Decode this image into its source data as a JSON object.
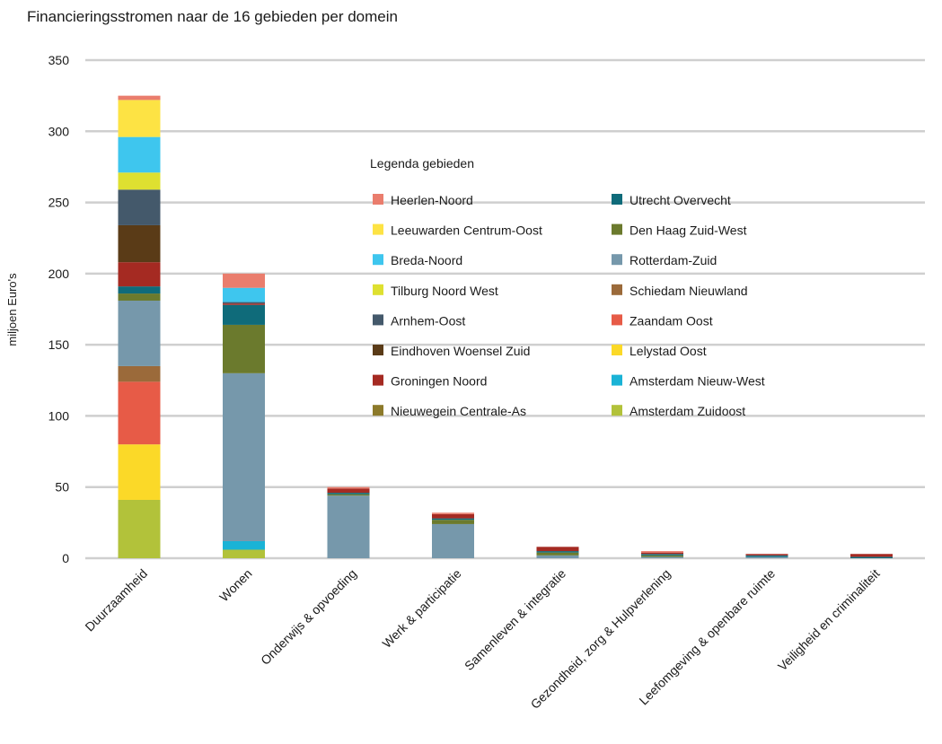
{
  "chart_data": {
    "type": "bar",
    "stacked": true,
    "title": "Financieringsstromen naar de 16 gebieden per domein",
    "xlabel": "",
    "ylabel": "miljoen Euro's",
    "ylim": [
      0,
      350
    ],
    "yticks": [
      0,
      50,
      100,
      150,
      200,
      250,
      300,
      350
    ],
    "grid": true,
    "legend_title": "Legenda gebieden",
    "legend_position": "center-right",
    "categories": [
      "Duurzaamheid",
      "Wonen",
      "Onderwijs & opvoeding",
      "Werk & participatie",
      "Samenleven & integratie",
      "Gezondheid, zorg & Hulpverlening",
      "Leefomgeving & openbare ruimte",
      "Veiligheid en criminaliteit"
    ],
    "series": [
      {
        "name": "Amsterdam Zuidoost",
        "color": "#b2c23a",
        "values": [
          41,
          6,
          0,
          0,
          0,
          0,
          0,
          0
        ]
      },
      {
        "name": "Amsterdam Nieuw-West",
        "color": "#1ab3d6",
        "values": [
          0,
          6,
          0,
          0,
          0,
          0,
          0,
          0
        ]
      },
      {
        "name": "Lelystad Oost",
        "color": "#fbd928",
        "values": [
          39,
          0,
          0,
          0,
          0,
          0,
          0,
          0
        ]
      },
      {
        "name": "Zaandam Oost",
        "color": "#e75b47",
        "values": [
          44,
          0,
          0,
          0,
          0,
          0,
          0,
          0
        ]
      },
      {
        "name": "Schiedam Nieuwland",
        "color": "#9b6a3a",
        "values": [
          11,
          0,
          0,
          0,
          0,
          0,
          0,
          0
        ]
      },
      {
        "name": "Rotterdam-Zuid",
        "color": "#7698ab",
        "values": [
          46,
          118,
          44,
          24,
          2,
          1,
          1,
          0
        ]
      },
      {
        "name": "Den Haag Zuid-West",
        "color": "#6b7a2d",
        "values": [
          5,
          34,
          1,
          3,
          2,
          1,
          0,
          0
        ]
      },
      {
        "name": "Utrecht Overvecht",
        "color": "#0f6b7a",
        "values": [
          5,
          14,
          1,
          1,
          1,
          1,
          1,
          1
        ]
      },
      {
        "name": "Nieuwegein Centrale-As",
        "color": "#8c7a2a",
        "values": [
          0,
          0,
          0,
          0,
          0,
          0,
          0,
          0
        ]
      },
      {
        "name": "Groningen Noord",
        "color": "#a52a22",
        "values": [
          17,
          1,
          3,
          3,
          3,
          1,
          1,
          2
        ]
      },
      {
        "name": "Eindhoven Woensel Zuid",
        "color": "#5a3b17",
        "values": [
          26,
          0,
          0,
          0,
          0,
          0,
          0,
          0
        ]
      },
      {
        "name": "Arnhem-Oost",
        "color": "#44596b",
        "values": [
          25,
          1,
          0,
          0,
          0,
          0,
          0,
          0
        ]
      },
      {
        "name": "Tilburg Noord West",
        "color": "#dee030",
        "values": [
          12,
          0,
          0,
          0,
          0,
          0,
          0,
          0
        ]
      },
      {
        "name": "Breda-Noord",
        "color": "#3ec6ee",
        "values": [
          25,
          10,
          0,
          0,
          0,
          0,
          0,
          0
        ]
      },
      {
        "name": "Leeuwarden Centrum-Oost",
        "color": "#fde344",
        "values": [
          26,
          0,
          0,
          0,
          0,
          0,
          0,
          0
        ]
      },
      {
        "name": "Heerlen-Noord",
        "color": "#ea7d6d",
        "values": [
          3,
          10,
          1,
          1,
          0,
          1,
          0,
          0
        ]
      }
    ],
    "legend_order": [
      "Heerlen-Noord",
      "Leeuwarden Centrum-Oost",
      "Breda-Noord",
      "Tilburg Noord West",
      "Arnhem-Oost",
      "Eindhoven Woensel Zuid",
      "Groningen Noord",
      "Nieuwegein Centrale-As",
      "Utrecht Overvecht",
      "Den Haag Zuid-West",
      "Rotterdam-Zuid",
      "Schiedam Nieuwland",
      "Zaandam Oost",
      "Lelystad Oost",
      "Amsterdam Nieuw-West",
      "Amsterdam Zuidoost"
    ]
  }
}
